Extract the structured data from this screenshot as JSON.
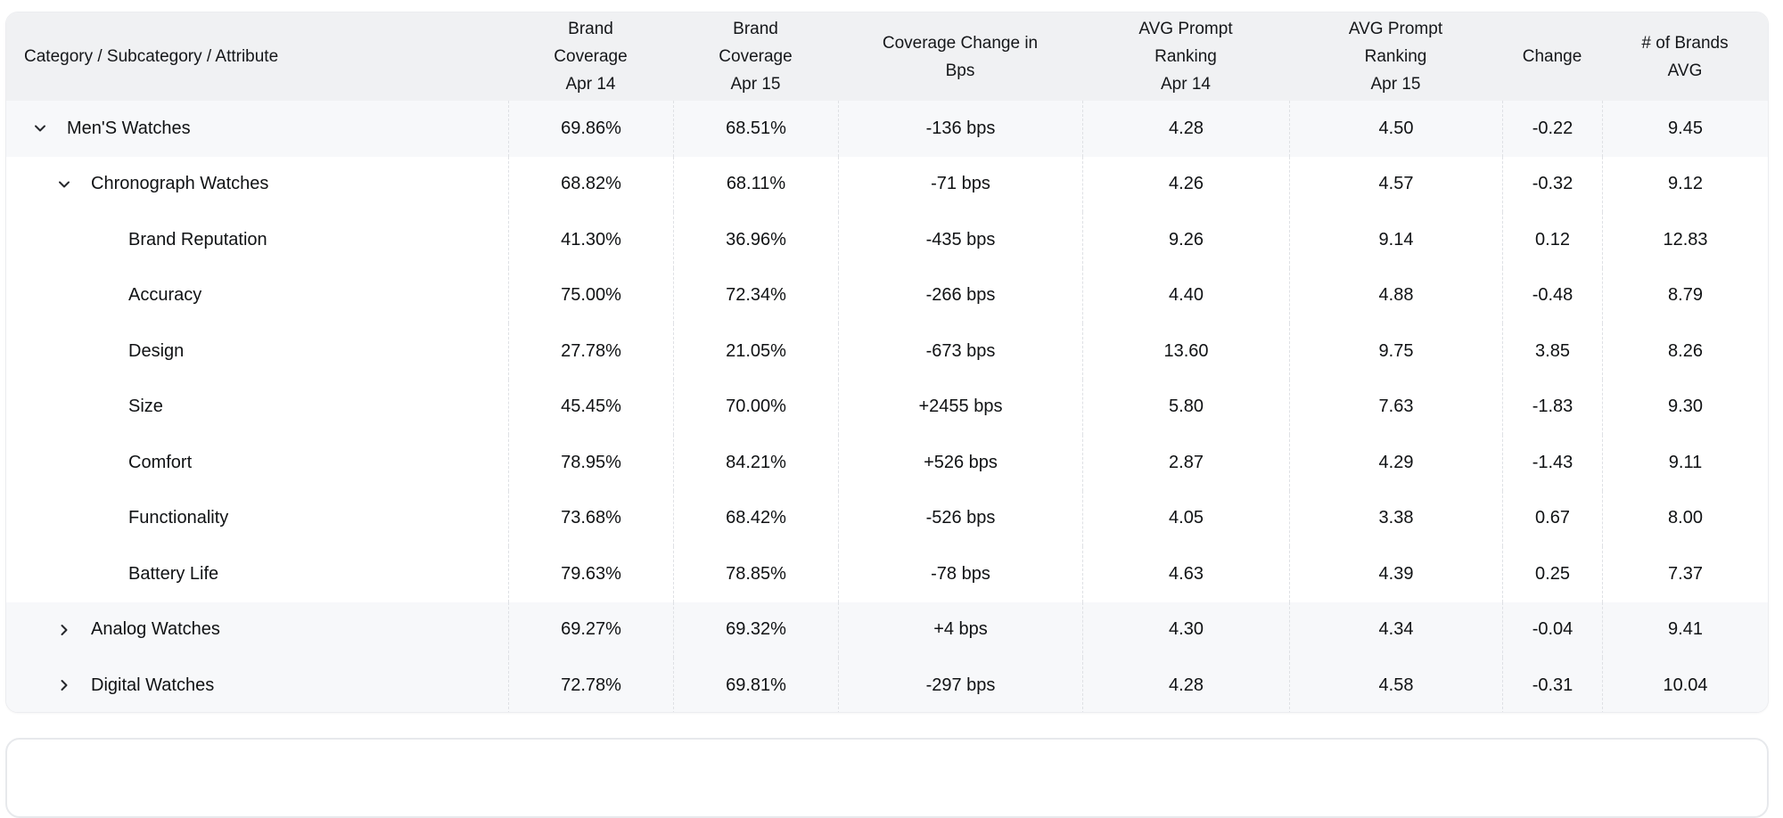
{
  "table": {
    "columns": [
      {
        "id": "category",
        "label": "Category / Subcategory / Attribute"
      },
      {
        "id": "brand_coverage_apr14",
        "label": "Brand\nCoverage\nApr 14"
      },
      {
        "id": "brand_coverage_apr15",
        "label": "Brand\nCoverage\nApr 15"
      },
      {
        "id": "coverage_change_bps",
        "label": "Coverage Change in\nBps"
      },
      {
        "id": "avg_prompt_ranking_apr14",
        "label": "AVG Prompt\nRanking\nApr 14"
      },
      {
        "id": "avg_prompt_ranking_apr15",
        "label": "AVG Prompt\nRanking\nApr 15"
      },
      {
        "id": "change",
        "label": "Change"
      },
      {
        "id": "num_brands_avg",
        "label": "# of Brands\nAVG"
      }
    ],
    "rows": [
      {
        "label": "Men'S Watches",
        "level": 1,
        "has_children": true,
        "expanded": true,
        "shaded": true,
        "values": [
          "69.86%",
          "68.51%",
          "-136 bps",
          "4.28",
          "4.50",
          "-0.22",
          "9.45"
        ]
      },
      {
        "label": "Chronograph Watches",
        "level": 2,
        "has_children": true,
        "expanded": true,
        "shaded": false,
        "values": [
          "68.82%",
          "68.11%",
          "-71 bps",
          "4.26",
          "4.57",
          "-0.32",
          "9.12"
        ]
      },
      {
        "label": "Brand Reputation",
        "level": 3,
        "has_children": false,
        "expanded": false,
        "shaded": false,
        "values": [
          "41.30%",
          "36.96%",
          "-435 bps",
          "9.26",
          "9.14",
          "0.12",
          "12.83"
        ]
      },
      {
        "label": "Accuracy",
        "level": 3,
        "has_children": false,
        "expanded": false,
        "shaded": false,
        "values": [
          "75.00%",
          "72.34%",
          "-266 bps",
          "4.40",
          "4.88",
          "-0.48",
          "8.79"
        ]
      },
      {
        "label": "Design",
        "level": 3,
        "has_children": false,
        "expanded": false,
        "shaded": false,
        "values": [
          "27.78%",
          "21.05%",
          "-673 bps",
          "13.60",
          "9.75",
          "3.85",
          "8.26"
        ]
      },
      {
        "label": "Size",
        "level": 3,
        "has_children": false,
        "expanded": false,
        "shaded": false,
        "values": [
          "45.45%",
          "70.00%",
          "+2455 bps",
          "5.80",
          "7.63",
          "-1.83",
          "9.30"
        ]
      },
      {
        "label": "Comfort",
        "level": 3,
        "has_children": false,
        "expanded": false,
        "shaded": false,
        "values": [
          "78.95%",
          "84.21%",
          "+526 bps",
          "2.87",
          "4.29",
          "-1.43",
          "9.11"
        ]
      },
      {
        "label": "Functionality",
        "level": 3,
        "has_children": false,
        "expanded": false,
        "shaded": false,
        "values": [
          "73.68%",
          "68.42%",
          "-526 bps",
          "4.05",
          "3.38",
          "0.67",
          "8.00"
        ]
      },
      {
        "label": "Battery Life",
        "level": 3,
        "has_children": false,
        "expanded": false,
        "shaded": false,
        "values": [
          "79.63%",
          "78.85%",
          "-78 bps",
          "4.63",
          "4.39",
          "0.25",
          "7.37"
        ]
      },
      {
        "label": "Analog Watches",
        "level": 2,
        "has_children": true,
        "expanded": false,
        "shaded": true,
        "values": [
          "69.27%",
          "69.32%",
          "+4 bps",
          "4.30",
          "4.34",
          "-0.04",
          "9.41"
        ]
      },
      {
        "label": "Digital Watches",
        "level": 2,
        "has_children": true,
        "expanded": false,
        "shaded": true,
        "values": [
          "72.78%",
          "69.81%",
          "-297 bps",
          "4.28",
          "4.58",
          "-0.31",
          "10.04"
        ]
      }
    ]
  },
  "icons": {
    "expanded_icon": "chevron-down-icon",
    "collapsed_icon": "chevron-right-icon"
  },
  "colors": {
    "page_background": "#ffffff",
    "header_background": "#f0f1f3",
    "shaded_row_background": "#f7f8fa",
    "row_background": "#ffffff",
    "divider_dashed": "#dfe1e5",
    "card_border": "#ecedf0",
    "text": "#101214"
  }
}
